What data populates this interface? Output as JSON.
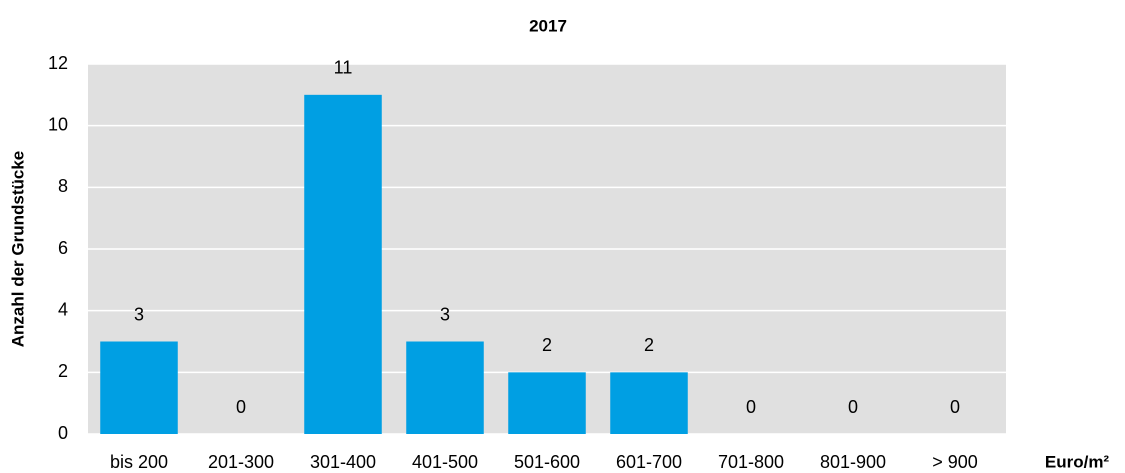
{
  "chart_data": {
    "type": "bar",
    "title": "2017",
    "y_label": "Anzahl der Grundstücke",
    "x_label": "Euro/m²",
    "categories": [
      "bis 200",
      "201-300",
      "301-400",
      "401-500",
      "501-600",
      "601-700",
      "701-800",
      "801-900",
      "> 900"
    ],
    "values": [
      3,
      0,
      11,
      3,
      2,
      2,
      0,
      0,
      0
    ],
    "color": "#009fe3",
    "ylim": [
      0,
      12
    ],
    "yticks": [
      0,
      2,
      4,
      6,
      8,
      10,
      12
    ],
    "grid": true
  }
}
